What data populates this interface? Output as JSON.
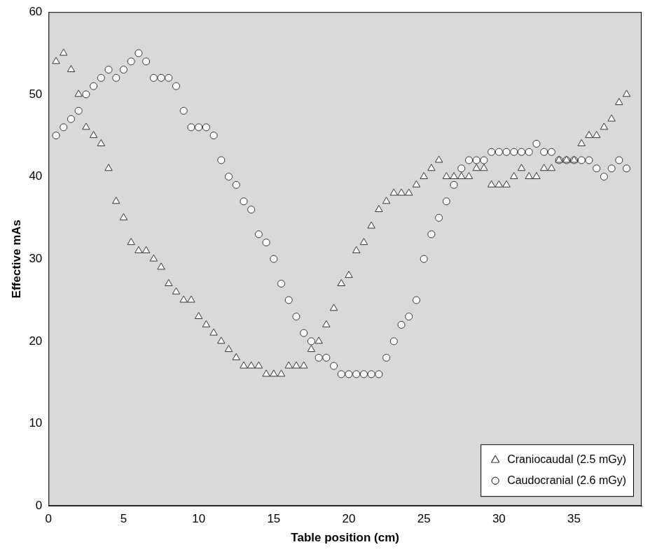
{
  "chart_data": {
    "type": "scatter",
    "x_label": "Table position (cm)",
    "y_label": "Effective mAs",
    "xlim": [
      0,
      39.5
    ],
    "xticks": [
      0,
      5,
      10,
      15,
      20,
      25,
      30,
      35
    ],
    "ylim": [
      0,
      60
    ],
    "yticks": [
      0,
      10,
      20,
      30,
      40,
      50,
      60
    ],
    "grid": false,
    "legend": "bottom right",
    "series": [
      {
        "name": "Craniocaudal (2.5 mGy)",
        "marker": "triangle",
        "color": "#333333",
        "x": [
          0.5,
          1,
          1.5,
          2,
          2.5,
          3,
          3.5,
          4,
          4.5,
          5,
          5.5,
          6,
          6.5,
          7,
          7.5,
          8,
          8.5,
          9,
          9.5,
          10,
          10.5,
          11,
          11.5,
          12,
          12.5,
          13,
          13.5,
          14,
          14.5,
          15,
          15.5,
          16,
          16.5,
          17,
          17.5,
          18,
          18.5,
          19,
          19.5,
          20,
          20.5,
          21,
          21.5,
          22,
          22.5,
          23,
          23.5,
          24,
          24.5,
          25,
          25.5,
          26,
          26.5,
          27,
          27.5,
          28,
          28.5,
          29,
          29.5,
          30,
          30.5,
          31,
          31.5,
          32,
          32.5,
          33,
          33.5,
          34,
          34.5,
          35,
          35.5,
          36,
          36.5,
          37,
          37.5,
          38,
          38.5
        ],
        "values": [
          54,
          55,
          53,
          50,
          46,
          45,
          44,
          41,
          37,
          35,
          32,
          31,
          31,
          30,
          29,
          27,
          26,
          25,
          25,
          23,
          22,
          21,
          20,
          19,
          18,
          17,
          17,
          17,
          16,
          16,
          16,
          17,
          17,
          17,
          19,
          20,
          22,
          24,
          27,
          28,
          31,
          32,
          34,
          36,
          37,
          38,
          38,
          38,
          39,
          40,
          41,
          42,
          40,
          40,
          40,
          40,
          41,
          41,
          39,
          39,
          39,
          40,
          41,
          40,
          40,
          41,
          41,
          42,
          42,
          42,
          44,
          45,
          45,
          46,
          47,
          49,
          50
        ]
      },
      {
        "name": "Caudocranial (2.6 mGy)",
        "marker": "circle",
        "color": "#333333",
        "x": [
          0.5,
          1,
          1.5,
          2,
          2.5,
          3,
          3.5,
          4,
          4.5,
          5,
          5.5,
          6,
          6.5,
          7,
          7.5,
          8,
          8.5,
          9,
          9.5,
          10,
          10.5,
          11,
          11.5,
          12,
          12.5,
          13,
          13.5,
          14,
          14.5,
          15,
          15.5,
          16,
          16.5,
          17,
          17.5,
          18,
          18.5,
          19,
          19.5,
          20,
          20.5,
          21,
          21.5,
          22,
          22.5,
          23,
          23.5,
          24,
          24.5,
          25,
          25.5,
          26,
          26.5,
          27,
          27.5,
          28,
          28.5,
          29,
          29.5,
          30,
          30.5,
          31,
          31.5,
          32,
          32.5,
          33,
          33.5,
          34,
          34.5,
          35,
          35.5,
          36,
          36.5,
          37,
          37.5,
          38,
          38.5
        ],
        "values": [
          45,
          46,
          47,
          48,
          50,
          51,
          52,
          53,
          52,
          53,
          54,
          55,
          54,
          52,
          52,
          52,
          51,
          48,
          46,
          46,
          46,
          45,
          42,
          40,
          39,
          37,
          36,
          33,
          32,
          30,
          27,
          25,
          23,
          21,
          20,
          18,
          18,
          17,
          16,
          16,
          16,
          16,
          16,
          16,
          18,
          20,
          22,
          23,
          25,
          30,
          33,
          35,
          37,
          39,
          41,
          42,
          42,
          42,
          43,
          43,
          43,
          43,
          43,
          43,
          44,
          43,
          43,
          42,
          42,
          42,
          42,
          42,
          41,
          40,
          41,
          42,
          41
        ]
      }
    ]
  }
}
